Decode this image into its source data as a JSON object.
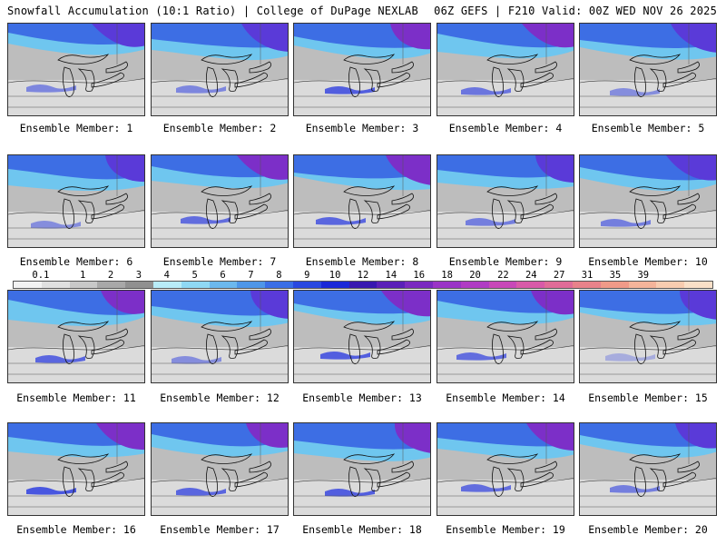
{
  "header": {
    "left_title": "Snowfall Accumulation (10:1 Ratio) | College of DuPage NEXLAB",
    "right_title": "06Z GEFS | F210 Valid: 00Z WED NOV 26 2025"
  },
  "members": [
    {
      "label": "Ensemble Member: 1",
      "intensity": 0.55
    },
    {
      "label": "Ensemble Member: 2",
      "intensity": 0.55
    },
    {
      "label": "Ensemble Member: 3",
      "intensity": 0.8
    },
    {
      "label": "Ensemble Member: 4",
      "intensity": 0.65
    },
    {
      "label": "Ensemble Member: 5",
      "intensity": 0.5
    },
    {
      "label": "Ensemble Member: 6",
      "intensity": 0.5
    },
    {
      "label": "Ensemble Member: 7",
      "intensity": 0.7
    },
    {
      "label": "Ensemble Member: 8",
      "intensity": 0.75
    },
    {
      "label": "Ensemble Member: 9",
      "intensity": 0.6
    },
    {
      "label": "Ensemble Member: 10",
      "intensity": 0.6
    },
    {
      "label": "Ensemble Member: 11",
      "intensity": 0.75
    },
    {
      "label": "Ensemble Member: 12",
      "intensity": 0.5
    },
    {
      "label": "Ensemble Member: 13",
      "intensity": 0.8
    },
    {
      "label": "Ensemble Member: 14",
      "intensity": 0.7
    },
    {
      "label": "Ensemble Member: 15",
      "intensity": 0.3
    },
    {
      "label": "Ensemble Member: 16",
      "intensity": 0.85
    },
    {
      "label": "Ensemble Member: 17",
      "intensity": 0.75
    },
    {
      "label": "Ensemble Member: 18",
      "intensity": 0.8
    },
    {
      "label": "Ensemble Member: 19",
      "intensity": 0.7
    },
    {
      "label": "Ensemble Member: 20",
      "intensity": 0.6
    }
  ],
  "colorbar": {
    "labels": [
      "0.1",
      "1",
      "2",
      "3",
      "4",
      "5",
      "6",
      "7",
      "8",
      "9",
      "10",
      "12",
      "14",
      "16",
      "18",
      "20",
      "22",
      "24",
      "27",
      "31",
      "35",
      "39"
    ],
    "colors": [
      "#f2f2f2",
      "#e0e0e0",
      "#c8c8c8",
      "#a8a8a8",
      "#909090",
      "#b8ecf8",
      "#8fd8f4",
      "#6cb8ee",
      "#4e96e8",
      "#3a6ee6",
      "#2a48e0",
      "#1a28d8",
      "#3818b0",
      "#5a20b8",
      "#7a2ac0",
      "#9a34c6",
      "#b03cc4",
      "#c848b8",
      "#d85aa8",
      "#e06c98",
      "#e8828a",
      "#f09a88",
      "#f4b49a",
      "#f8ccb0",
      "#fae0c8"
    ]
  }
}
